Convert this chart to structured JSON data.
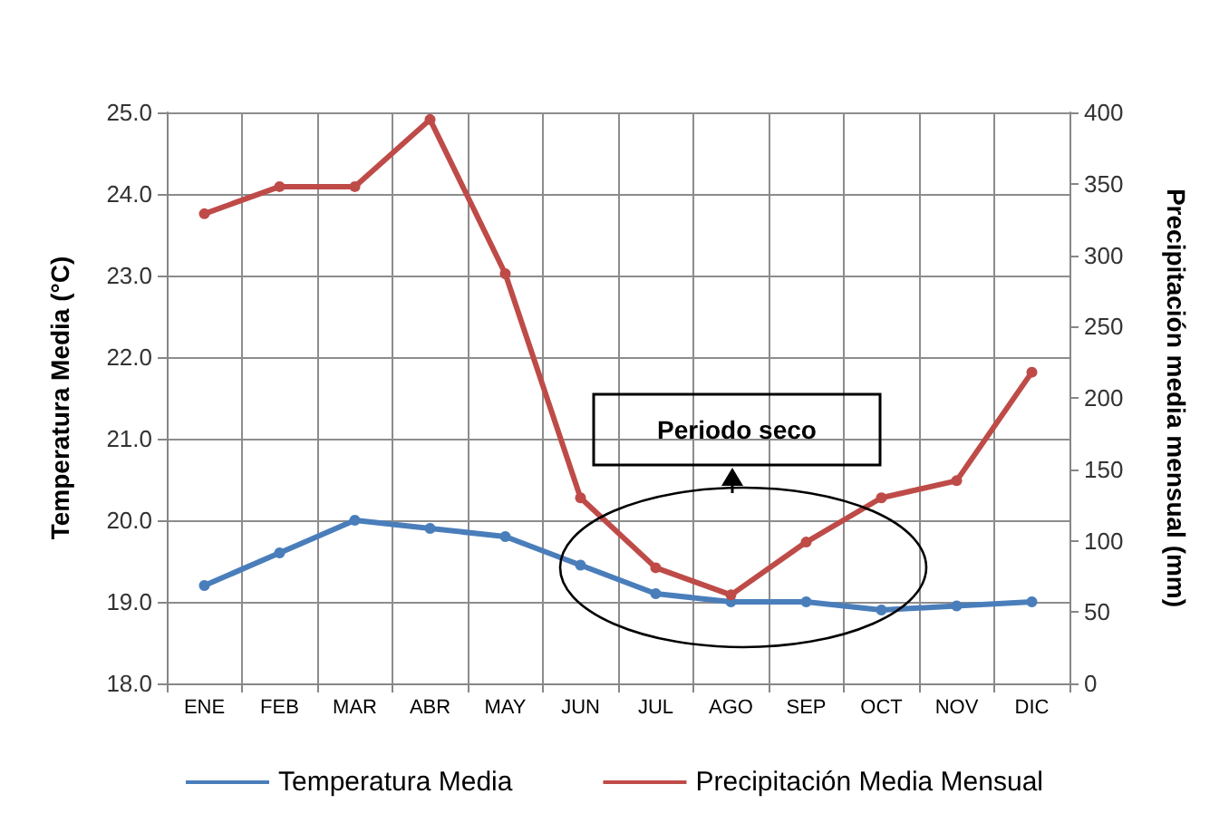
{
  "chart_data": {
    "type": "line",
    "categories": [
      "ENE",
      "FEB",
      "MAR",
      "ABR",
      "MAY",
      "JUN",
      "JUL",
      "AGO",
      "SEP",
      "OCT",
      "NOV",
      "DIC"
    ],
    "ylabel": "Temperatura Media (°C)",
    "y2label": "Precipitación media mensual (mm)",
    "series": [
      {
        "name": "Temperatura Media",
        "color": "#4a7ebb",
        "values": [
          19.2,
          19.6,
          20.0,
          19.9,
          19.8,
          19.45,
          19.1,
          19.0,
          19.0,
          18.9,
          18.95,
          19.0
        ]
      },
      {
        "name": "Precipitación Media Mensual",
        "color": "#be4b48",
        "axis": "y2",
        "values": [
          329,
          348,
          348,
          395,
          287,
          130,
          81,
          62,
          99,
          130,
          142,
          218
        ]
      }
    ],
    "ylim": [
      18,
      25
    ],
    "yticks": [
      {
        "value": 18,
        "label": "18.0"
      },
      {
        "value": 19,
        "label": "19.0"
      },
      {
        "value": 20,
        "label": "20.0"
      },
      {
        "value": 21,
        "label": "21.0"
      },
      {
        "value": 22,
        "label": "22.0"
      },
      {
        "value": 23,
        "label": "23.0"
      },
      {
        "value": 24,
        "label": "24.0"
      },
      {
        "value": 25,
        "label": "25.0"
      }
    ],
    "y2lim": [
      0,
      400
    ],
    "y2ticks": [
      0,
      50,
      100,
      150,
      200,
      250,
      300,
      350,
      400
    ],
    "annotations": [
      "Periodo seco"
    ],
    "grid": true,
    "legend": "bottom",
    "marker": "circle",
    "line_style": "solid"
  }
}
